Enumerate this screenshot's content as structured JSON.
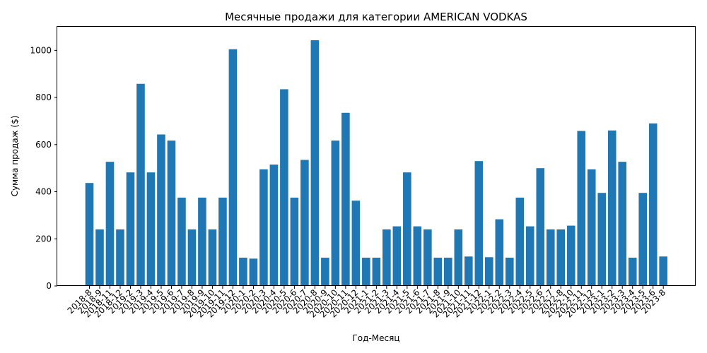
{
  "chart_data": {
    "type": "bar",
    "title": "Месячные продажи для категории AMERICAN VODKAS",
    "xlabel": "Год-Месяц",
    "ylabel": "Сумма продаж ($)",
    "ylim": [
      0,
      1100
    ],
    "yticks": [
      0,
      200,
      400,
      600,
      800,
      1000
    ],
    "grid": false,
    "categories": [
      "2018-8",
      "2018-9",
      "2018-11",
      "2018-12",
      "2019-2",
      "2019-3",
      "2019-4",
      "2019-5",
      "2019-6",
      "2019-7",
      "2019-8",
      "2019-9",
      "2019-10",
      "2019-11",
      "2019-12",
      "2020-1",
      "2020-2",
      "2020-3",
      "2020-4",
      "2020-5",
      "2020-6",
      "2020-7",
      "2020-8",
      "2020-9",
      "2020-10",
      "2020-11",
      "2020-12",
      "2021-1",
      "2021-2",
      "2021-3",
      "2021-4",
      "2021-5",
      "2021-6",
      "2021-7",
      "2021-8",
      "2021-9",
      "2021-10",
      "2021-11",
      "2021-12",
      "2022-1",
      "2022-2",
      "2022-3",
      "2022-4",
      "2022-5",
      "2022-6",
      "2022-7",
      "2022-8",
      "2022-10",
      "2022-11",
      "2022-12",
      "2023-1",
      "2023-2",
      "2023-3",
      "2023-4",
      "2023-5",
      "2023-6",
      "2023-8"
    ],
    "values": [
      437,
      240,
      527,
      240,
      482,
      858,
      482,
      643,
      617,
      375,
      240,
      375,
      240,
      375,
      1005,
      120,
      116,
      495,
      515,
      835,
      375,
      535,
      1043,
      120,
      617,
      735,
      362,
      120,
      120,
      240,
      253,
      482,
      253,
      240,
      120,
      120,
      240,
      125,
      530,
      122,
      283,
      120,
      375,
      253,
      500,
      240,
      240,
      256,
      658,
      495,
      395,
      660,
      527,
      120,
      395,
      690,
      125
    ]
  }
}
